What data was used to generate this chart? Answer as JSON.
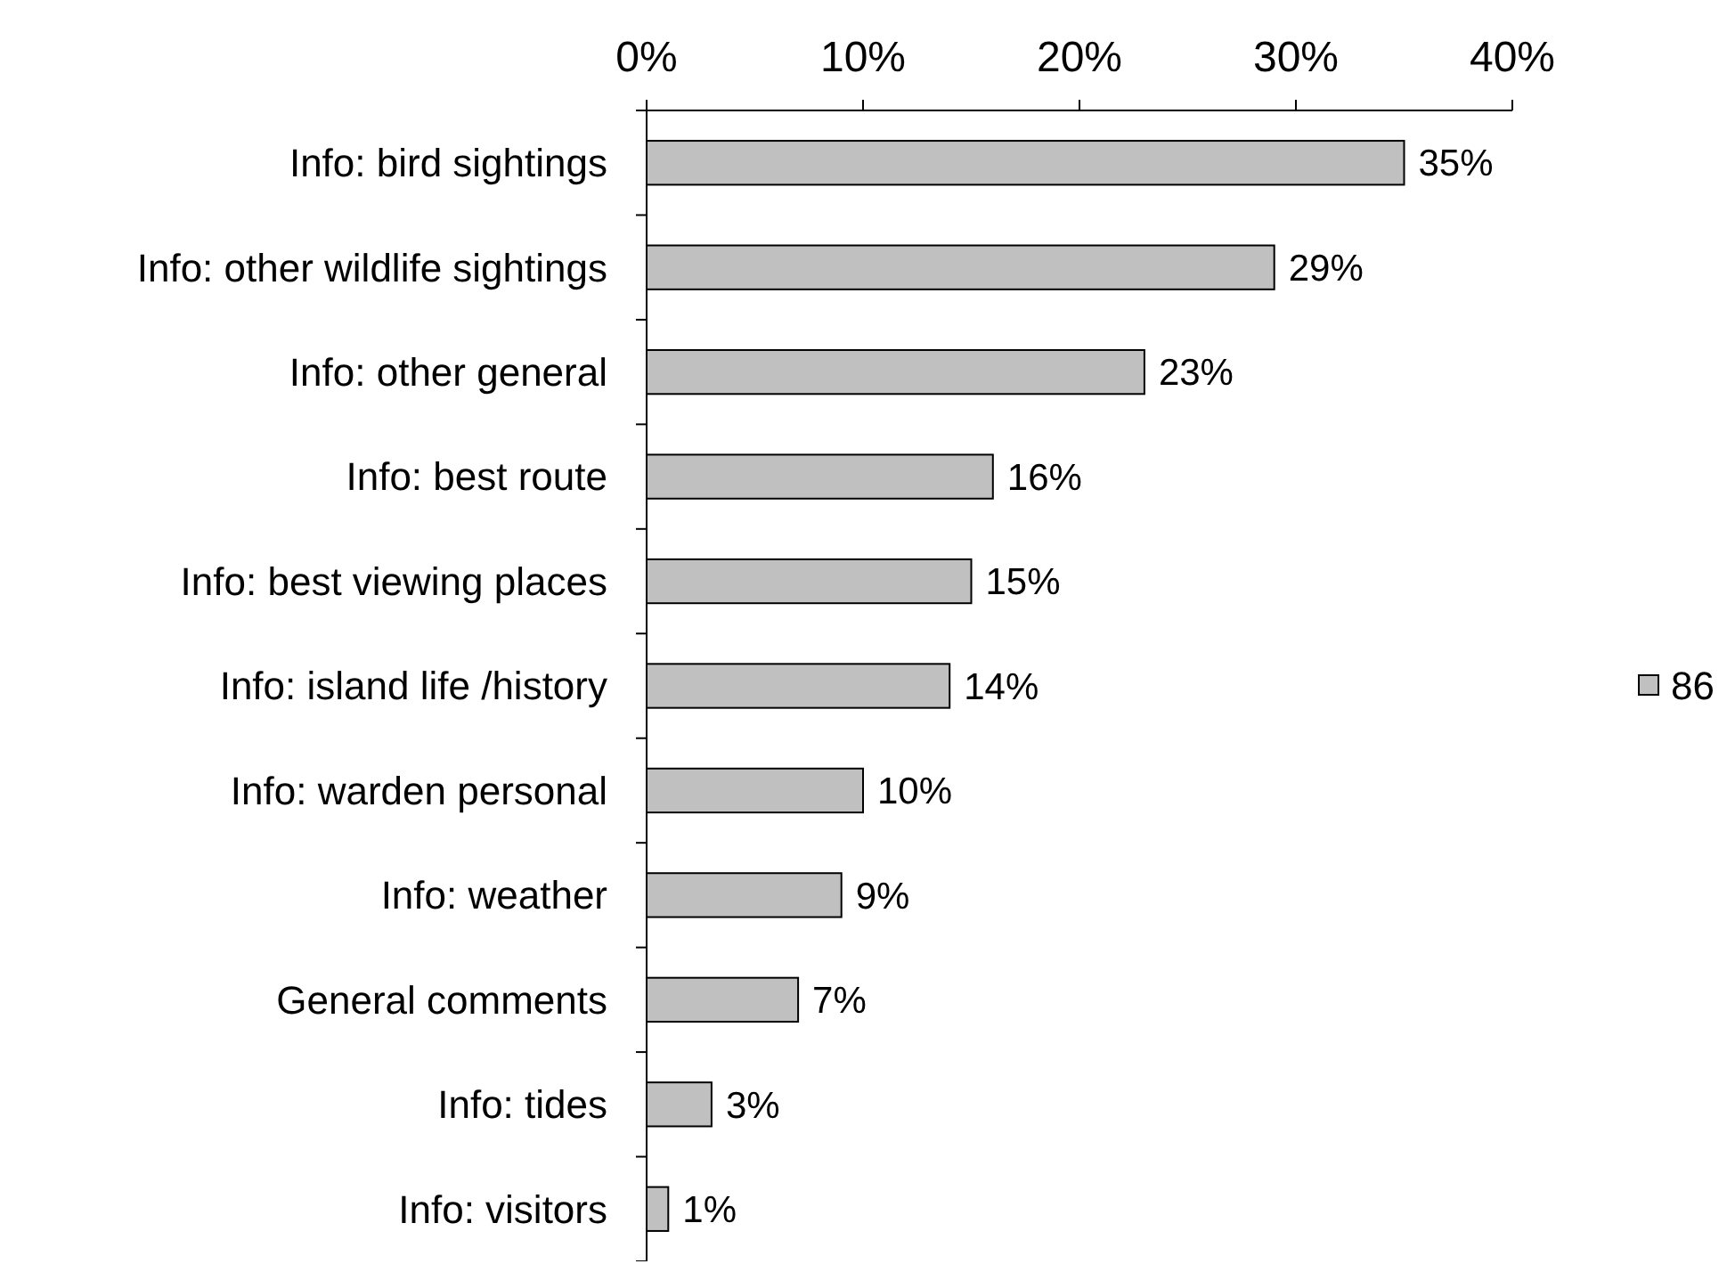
{
  "chart_data": {
    "type": "bar",
    "orientation": "horizontal",
    "categories": [
      "Info: bird sightings",
      "Info: other wildlife sightings",
      "Info: other general",
      "Info: best route",
      "Info: best viewing places",
      "Info: island life /history",
      "Info: warden personal",
      "Info: weather",
      "General comments",
      "Info: tides",
      "Info: visitors"
    ],
    "series": [
      {
        "name": "86",
        "color": "#c0c0c0",
        "values": [
          35,
          29,
          23,
          16,
          15,
          14,
          10,
          9,
          7,
          3,
          1
        ],
        "value_labels": [
          "35%",
          "29%",
          "23%",
          "16%",
          "15%",
          "14%",
          "10%",
          "9%",
          "7%",
          "3%",
          "1%"
        ]
      }
    ],
    "xlim": [
      0,
      40
    ],
    "xticks": [
      {
        "value": 0,
        "label": "0%"
      },
      {
        "value": 10,
        "label": "10%"
      },
      {
        "value": 20,
        "label": "20%"
      },
      {
        "value": 30,
        "label": "30%"
      },
      {
        "value": 40,
        "label": "40%"
      }
    ],
    "grid": false,
    "legend": "right"
  }
}
